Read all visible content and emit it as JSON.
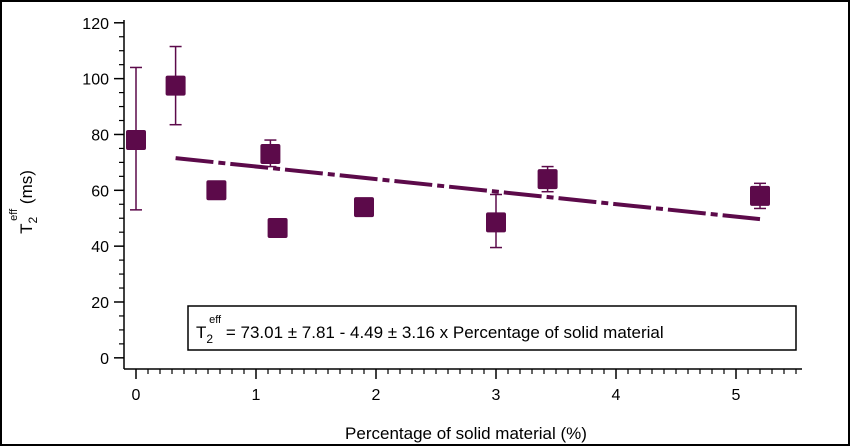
{
  "chart_data": {
    "type": "scatter",
    "title": "",
    "xlabel": "Percentage of solid material (%)",
    "ylabel": {
      "main": "T",
      "sub": "2",
      "sup": "eff",
      "unit": " (ms)"
    },
    "xlim": [
      -0.1,
      5.55
    ],
    "ylim": [
      -4,
      121
    ],
    "x_ticks": [
      0,
      1,
      2,
      3,
      4,
      5
    ],
    "y_ticks": [
      0,
      20,
      40,
      60,
      80,
      100,
      120
    ],
    "grid": false,
    "legend": "none",
    "marker_color": "#5c0a4a",
    "line_color": "#5c0a4a",
    "points": [
      {
        "x": 0.0,
        "y": 78.0,
        "err_low": 53.0,
        "err_high": 104.0
      },
      {
        "x": 0.33,
        "y": 97.5,
        "err_low": 83.5,
        "err_high": 111.5
      },
      {
        "x": 0.67,
        "y": 60.0,
        "err_low": 58.0,
        "err_high": 62.0
      },
      {
        "x": 1.12,
        "y": 73.0,
        "err_low": 68.5,
        "err_high": 78.0
      },
      {
        "x": 1.18,
        "y": 46.5,
        "err_low": 46.5,
        "err_high": 46.5
      },
      {
        "x": 1.9,
        "y": 54.0,
        "err_low": 54.0,
        "err_high": 54.0
      },
      {
        "x": 3.0,
        "y": 48.5,
        "err_low": 39.5,
        "err_high": 58.5
      },
      {
        "x": 3.43,
        "y": 64.0,
        "err_low": 59.5,
        "err_high": 68.5
      },
      {
        "x": 5.2,
        "y": 58.0,
        "err_low": 53.5,
        "err_high": 62.5
      }
    ],
    "fit": {
      "x_start": 0.33,
      "x_end": 5.2,
      "intercept": 73.01,
      "slope": -4.49
    },
    "annotation": {
      "main": "T",
      "sub": "2",
      "sup": "eff",
      "rest": " = 73.01 ± 7.81 - 4.49 ± 3.16 x Percentage of solid material"
    }
  }
}
